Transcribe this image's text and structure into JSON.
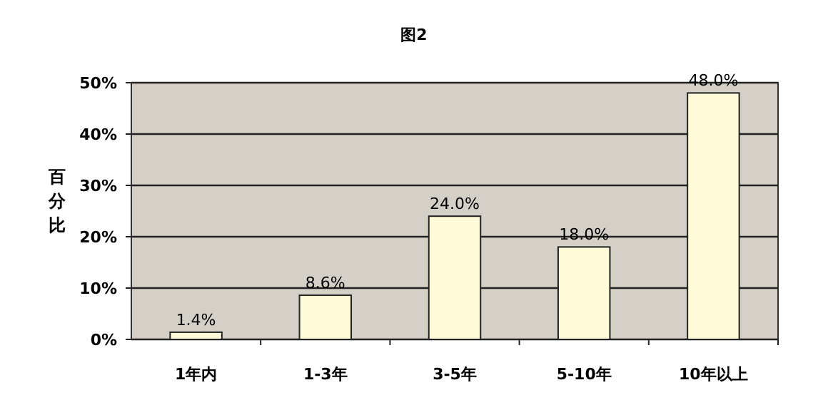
{
  "chart_data": {
    "type": "bar",
    "title": "图2",
    "ylabel": "百分比",
    "categories": [
      "1年内",
      "1-3年",
      "3-5年",
      "5-10年",
      "10年以上"
    ],
    "values": [
      1.4,
      8.6,
      24.0,
      18.0,
      48.0
    ],
    "value_labels": [
      "1.4%",
      "8.6%",
      "24.0%",
      "18.0%",
      "48.0%"
    ],
    "color": "#fffbd8",
    "ylim": [
      0,
      50
    ],
    "yticks": [
      {
        "value": 0,
        "label": "0%"
      },
      {
        "value": 10,
        "label": "10%"
      },
      {
        "value": 20,
        "label": "20%"
      },
      {
        "value": 30,
        "label": "30%"
      },
      {
        "value": 40,
        "label": "40%"
      },
      {
        "value": 50,
        "label": "50%"
      }
    ],
    "grid": "y"
  }
}
